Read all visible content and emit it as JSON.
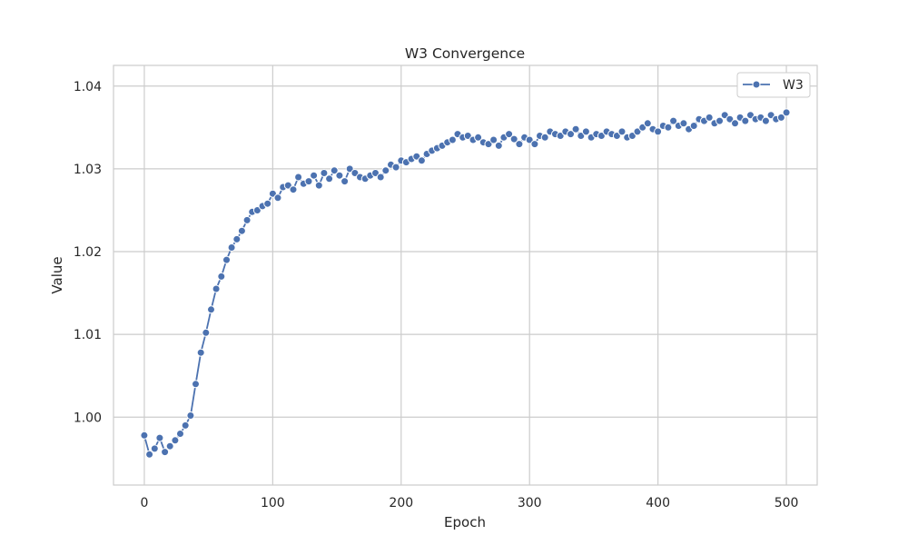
{
  "chart_data": {
    "type": "line",
    "title": "W3 Convergence",
    "xlabel": "Epoch",
    "ylabel": "Value",
    "xlim": [
      -24,
      524
    ],
    "ylim": [
      0.9918,
      1.0425
    ],
    "xticks": [
      0,
      100,
      200,
      300,
      400,
      500
    ],
    "yticks": [
      1.0,
      1.01,
      1.02,
      1.03,
      1.04
    ],
    "xtick_labels": [
      "0",
      "100",
      "200",
      "300",
      "400",
      "500"
    ],
    "ytick_labels": [
      "1.00",
      "1.01",
      "1.02",
      "1.03",
      "1.04"
    ],
    "grid": true,
    "legend_position": "top-right",
    "series": [
      {
        "name": "W3",
        "color": "#4c72b0",
        "marker": "circle",
        "x": [
          0,
          4,
          8,
          12,
          16,
          20,
          24,
          28,
          32,
          36,
          40,
          44,
          48,
          52,
          56,
          60,
          64,
          68,
          72,
          76,
          80,
          84,
          88,
          92,
          96,
          100,
          104,
          108,
          112,
          116,
          120,
          124,
          128,
          132,
          136,
          140,
          144,
          148,
          152,
          156,
          160,
          164,
          168,
          172,
          176,
          180,
          184,
          188,
          192,
          196,
          200,
          204,
          208,
          212,
          216,
          220,
          224,
          228,
          232,
          236,
          240,
          244,
          248,
          252,
          256,
          260,
          264,
          268,
          272,
          276,
          280,
          284,
          288,
          292,
          296,
          300,
          304,
          308,
          312,
          316,
          320,
          324,
          328,
          332,
          336,
          340,
          344,
          348,
          352,
          356,
          360,
          364,
          368,
          372,
          376,
          380,
          384,
          388,
          392,
          396,
          400,
          404,
          408,
          412,
          416,
          420,
          424,
          428,
          432,
          436,
          440,
          444,
          448,
          452,
          456,
          460,
          464,
          468,
          472,
          476,
          480,
          484,
          488,
          492,
          496,
          500
        ],
        "y": [
          0.9978,
          0.9955,
          0.9962,
          0.9975,
          0.9958,
          0.9965,
          0.9972,
          0.998,
          0.999,
          1.0002,
          1.004,
          1.0078,
          1.0102,
          1.013,
          1.0155,
          1.017,
          1.019,
          1.0205,
          1.0215,
          1.0225,
          1.0238,
          1.0248,
          1.025,
          1.0255,
          1.0258,
          1.027,
          1.0265,
          1.0278,
          1.028,
          1.0275,
          1.029,
          1.0282,
          1.0285,
          1.0292,
          1.028,
          1.0295,
          1.0288,
          1.0298,
          1.0292,
          1.0285,
          1.03,
          1.0295,
          1.029,
          1.0288,
          1.0292,
          1.0295,
          1.029,
          1.0298,
          1.0305,
          1.0302,
          1.031,
          1.0308,
          1.0312,
          1.0315,
          1.031,
          1.0318,
          1.0322,
          1.0325,
          1.0328,
          1.0332,
          1.0335,
          1.0342,
          1.0338,
          1.034,
          1.0335,
          1.0338,
          1.0332,
          1.033,
          1.0335,
          1.0328,
          1.0338,
          1.0342,
          1.0336,
          1.033,
          1.0338,
          1.0335,
          1.033,
          1.034,
          1.0338,
          1.0345,
          1.0342,
          1.034,
          1.0345,
          1.0342,
          1.0348,
          1.034,
          1.0345,
          1.0338,
          1.0342,
          1.034,
          1.0345,
          1.0342,
          1.034,
          1.0345,
          1.0338,
          1.034,
          1.0345,
          1.035,
          1.0355,
          1.0348,
          1.0345,
          1.0352,
          1.035,
          1.0358,
          1.0352,
          1.0355,
          1.0348,
          1.0352,
          1.036,
          1.0358,
          1.0362,
          1.0355,
          1.0358,
          1.0365,
          1.036,
          1.0355,
          1.0362,
          1.0358,
          1.0365,
          1.036,
          1.0362,
          1.0358,
          1.0365,
          1.036,
          1.0362,
          1.0368
        ]
      }
    ]
  }
}
